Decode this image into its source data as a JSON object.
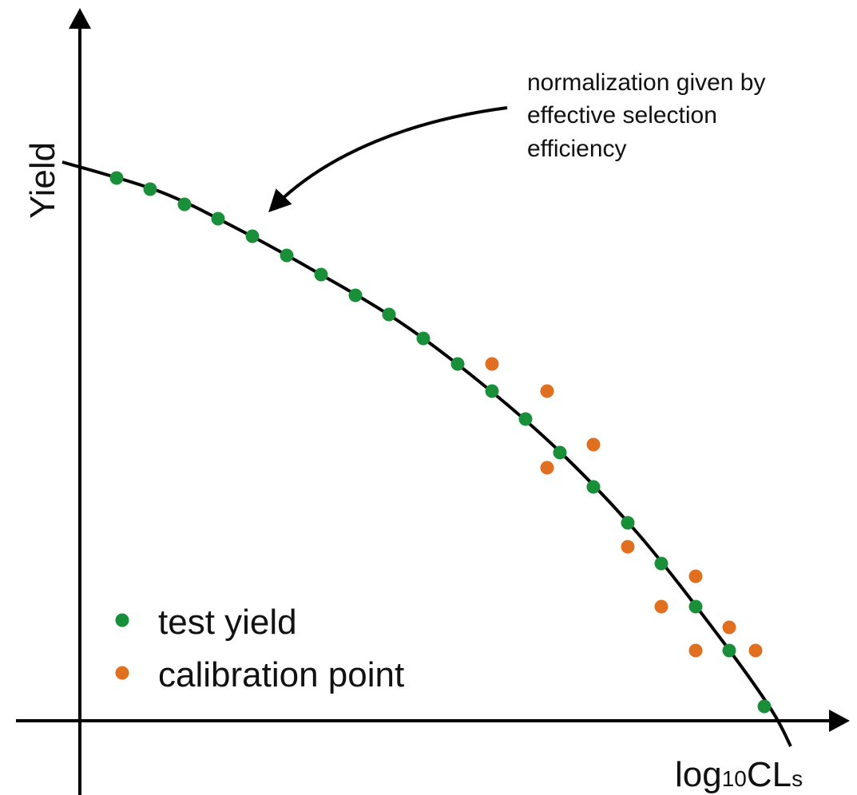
{
  "chart_data": {
    "type": "scatter",
    "annotation": [
      "normalization given by",
      "effective selection",
      "efficiency"
    ],
    "y_label": "Yield",
    "x_label": [
      "log",
      "10",
      "CL",
      "s"
    ],
    "xlim": [
      0,
      96
    ],
    "ylim": [
      0,
      88
    ],
    "curve": {
      "color": "#000000",
      "x": [
        -2.2,
        10,
        20,
        30,
        40,
        50,
        60,
        70,
        80,
        86.5,
        89
      ],
      "y": [
        70,
        66.3,
        61.5,
        56,
        50,
        42.5,
        33.8,
        23.3,
        10.6,
        1.5,
        -3.2
      ]
    },
    "series": [
      {
        "name": "test yield",
        "color": "#1a8f3a",
        "x": [
          4.6,
          8.8,
          13.1,
          17.3,
          21.6,
          25.9,
          30.2,
          34.5,
          38.7,
          43,
          47.3,
          51.6,
          55.8,
          60.1,
          64.3,
          68.6,
          72.8,
          77.1,
          81.3,
          85.7
        ],
        "values": [
          68,
          66.6,
          64.7,
          62.9,
          60.7,
          58.3,
          55.9,
          53.3,
          50.9,
          47.9,
          44.7,
          41.3,
          37.8,
          33.6,
          29.3,
          24.8,
          19.7,
          14.3,
          8.8,
          1.8
        ]
      },
      {
        "name": "calibration point",
        "color": "#e07020",
        "x": [
          51.6,
          58.5,
          64.3,
          58.5,
          68.6,
          72.8,
          77.1,
          81.3,
          77.1,
          84.6
        ],
        "values": [
          44.7,
          41.3,
          34.6,
          31.7,
          21.8,
          14.3,
          18.1,
          11.7,
          8.8,
          8.8
        ]
      }
    ]
  }
}
